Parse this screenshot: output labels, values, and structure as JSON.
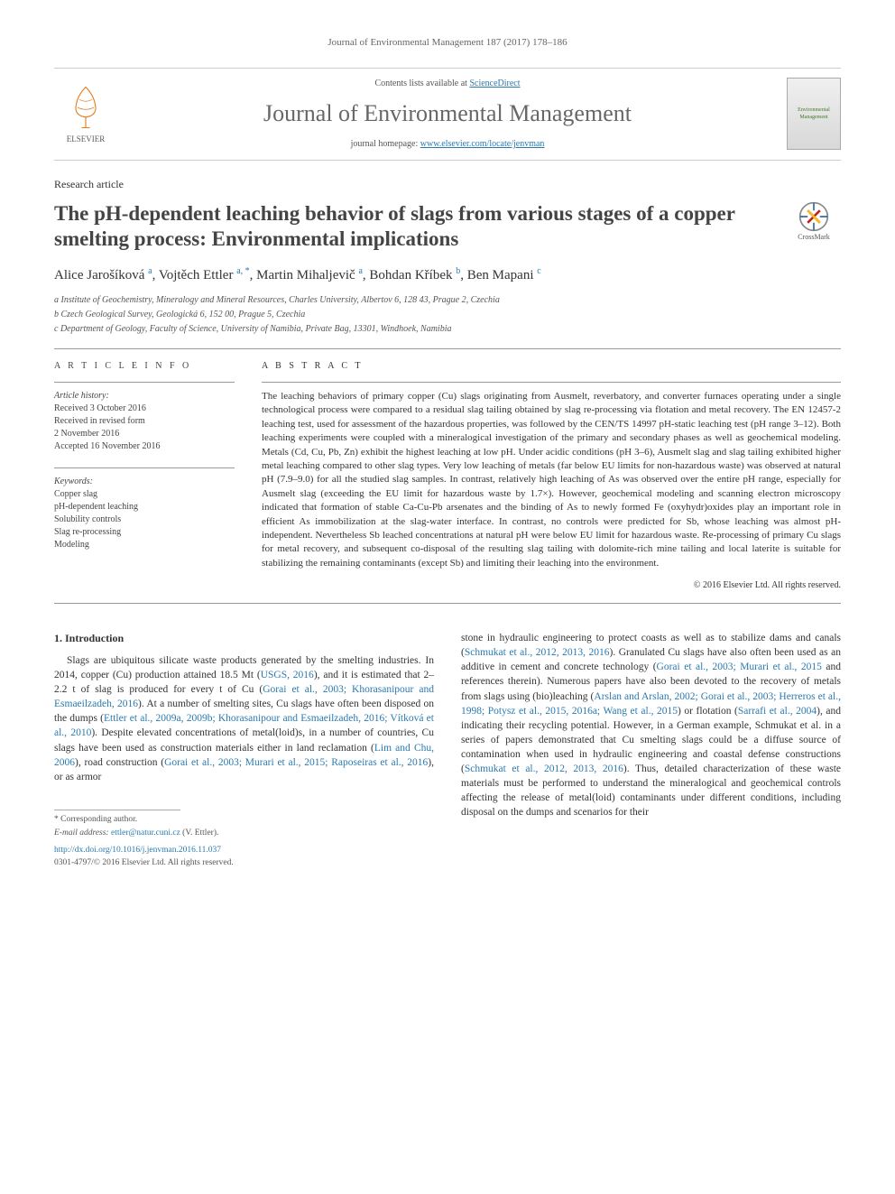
{
  "page_header": "Journal of Environmental Management 187 (2017) 178–186",
  "contents_bar": {
    "contents_text": "Contents lists available at ",
    "contents_link": "ScienceDirect",
    "journal_name": "Journal of Environmental Management",
    "homepage_text": "journal homepage: ",
    "homepage_link": "www.elsevier.com/locate/jenvman",
    "publisher_label": "ELSEVIER",
    "cover_label": "Environmental Management"
  },
  "article_type": "Research article",
  "title": "The pH-dependent leaching behavior of slags from various stages of a copper smelting process: Environmental implications",
  "crossmark_label": "CrossMark",
  "authors_html_parts": [
    {
      "name": "Alice Jarošíková",
      "sup": "a"
    },
    {
      "name": "Vojtěch Ettler",
      "sup": "a, *"
    },
    {
      "name": "Martin Mihaljevič",
      "sup": "a"
    },
    {
      "name": "Bohdan Kříbek",
      "sup": "b"
    },
    {
      "name": "Ben Mapani",
      "sup": "c"
    }
  ],
  "affiliations": [
    "a Institute of Geochemistry, Mineralogy and Mineral Resources, Charles University, Albertov 6, 128 43, Prague 2, Czechia",
    "b Czech Geological Survey, Geologická 6, 152 00, Prague 5, Czechia",
    "c Department of Geology, Faculty of Science, University of Namibia, Private Bag, 13301, Windhoek, Namibia"
  ],
  "article_info": {
    "heading": "A R T I C L E   I N F O",
    "history_label": "Article history:",
    "history": [
      "Received 3 October 2016",
      "Received in revised form",
      "2 November 2016",
      "Accepted 16 November 2016"
    ],
    "keywords_label": "Keywords:",
    "keywords": [
      "Copper slag",
      "pH-dependent leaching",
      "Solubility controls",
      "Slag re-processing",
      "Modeling"
    ]
  },
  "abstract": {
    "heading": "A B S T R A C T",
    "text": "The leaching behaviors of primary copper (Cu) slags originating from Ausmelt, reverbatory, and converter furnaces operating under a single technological process were compared to a residual slag tailing obtained by slag re-processing via flotation and metal recovery. The EN 12457-2 leaching test, used for assessment of the hazardous properties, was followed by the CEN/TS 14997 pH-static leaching test (pH range 3–12). Both leaching experiments were coupled with a mineralogical investigation of the primary and secondary phases as well as geochemical modeling. Metals (Cd, Cu, Pb, Zn) exhibit the highest leaching at low pH. Under acidic conditions (pH 3–6), Ausmelt slag and slag tailing exhibited higher metal leaching compared to other slag types. Very low leaching of metals (far below EU limits for non-hazardous waste) was observed at natural pH (7.9–9.0) for all the studied slag samples. In contrast, relatively high leaching of As was observed over the entire pH range, especially for Ausmelt slag (exceeding the EU limit for hazardous waste by 1.7×). However, geochemical modeling and scanning electron microscopy indicated that formation of stable Ca-Cu-Pb arsenates and the binding of As to newly formed Fe (oxyhydr)oxides play an important role in efficient As immobilization at the slag-water interface. In contrast, no controls were predicted for Sb, whose leaching was almost pH-independent. Nevertheless Sb leached concentrations at natural pH were below EU limit for hazardous waste. Re-processing of primary Cu slags for metal recovery, and subsequent co-disposal of the resulting slag tailing with dolomite-rich mine tailing and local laterite is suitable for stabilizing the remaining contaminants (except Sb) and limiting their leaching into the environment.",
    "copyright": "© 2016 Elsevier Ltd. All rights reserved."
  },
  "intro": {
    "heading": "1. Introduction",
    "left_plain_1": "Slags are ubiquitous silicate waste products generated by the smelting industries. In 2014, copper (Cu) production attained 18.5 Mt (",
    "link_usgs": "USGS, 2016",
    "left_plain_2": "), and it is estimated that 2–2.2 t of slag is produced for every t of Cu (",
    "link_gorai_khor": "Gorai et al., 2003; Khorasanipour and Esmaeilzadeh, 2016",
    "left_plain_3": "). At a number of smelting sites, Cu slags have often been disposed on the dumps (",
    "link_dumps": "Ettler et al., 2009a, 2009b; Khorasanipour and Esmaeilzadeh, 2016; Vítková et al., 2010",
    "left_plain_4": "). Despite elevated concentrations of metal(loid)s, in a number of countries, Cu slags have been used as construction materials either in land reclamation (",
    "link_lim": "Lim and Chu, 2006",
    "left_plain_5": "), road construction (",
    "link_road": "Gorai et al., 2003; Murari et al., 2015; Raposeiras et al., 2016",
    "left_plain_6": "), or as armor",
    "right_plain_1": "stone in hydraulic engineering to protect coasts as well as to stabilize dams and canals (",
    "link_schmukat1": "Schmukat et al., 2012, 2013, 2016",
    "right_plain_2": "). Granulated Cu slags have also often been used as an additive in cement and concrete technology (",
    "link_concrete": "Gorai et al., 2003; Murari et al., 2015",
    "right_plain_3": " and references therein). Numerous papers have also been devoted to the recovery of metals from slags using (bio)leaching (",
    "link_bio": "Arslan and Arslan, 2002; Gorai et al., 2003; Herreros et al., 1998; Potysz et al., 2015, 2016a; Wang et al., 2015",
    "right_plain_4": ") or flotation (",
    "link_flot": "Sarrafi et al., 2004",
    "right_plain_5": "), and indicating their recycling potential. However, in a German example, Schmukat et al. in a series of papers demonstrated that Cu smelting slags could be a diffuse source of contamination when used in hydraulic engineering and coastal defense constructions (",
    "link_schmukat2": "Schmukat et al., 2012, 2013, 2016",
    "right_plain_6": "). Thus, detailed characterization of these waste materials must be performed to understand the mineralogical and geochemical controls affecting the release of metal(loid) contaminants under different conditions, including disposal on the dumps and scenarios for their"
  },
  "footer": {
    "corr": "* Corresponding author.",
    "email_label": "E-mail address: ",
    "email": "ettler@natur.cuni.cz",
    "email_who": " (V. Ettler).",
    "doi": "http://dx.doi.org/10.1016/j.jenvman.2016.11.037",
    "issn_copy": "0301-4797/© 2016 Elsevier Ltd. All rights reserved."
  },
  "colors": {
    "link": "#2a7ab0",
    "text": "#333333",
    "muted": "#666666",
    "rule": "#999999"
  }
}
